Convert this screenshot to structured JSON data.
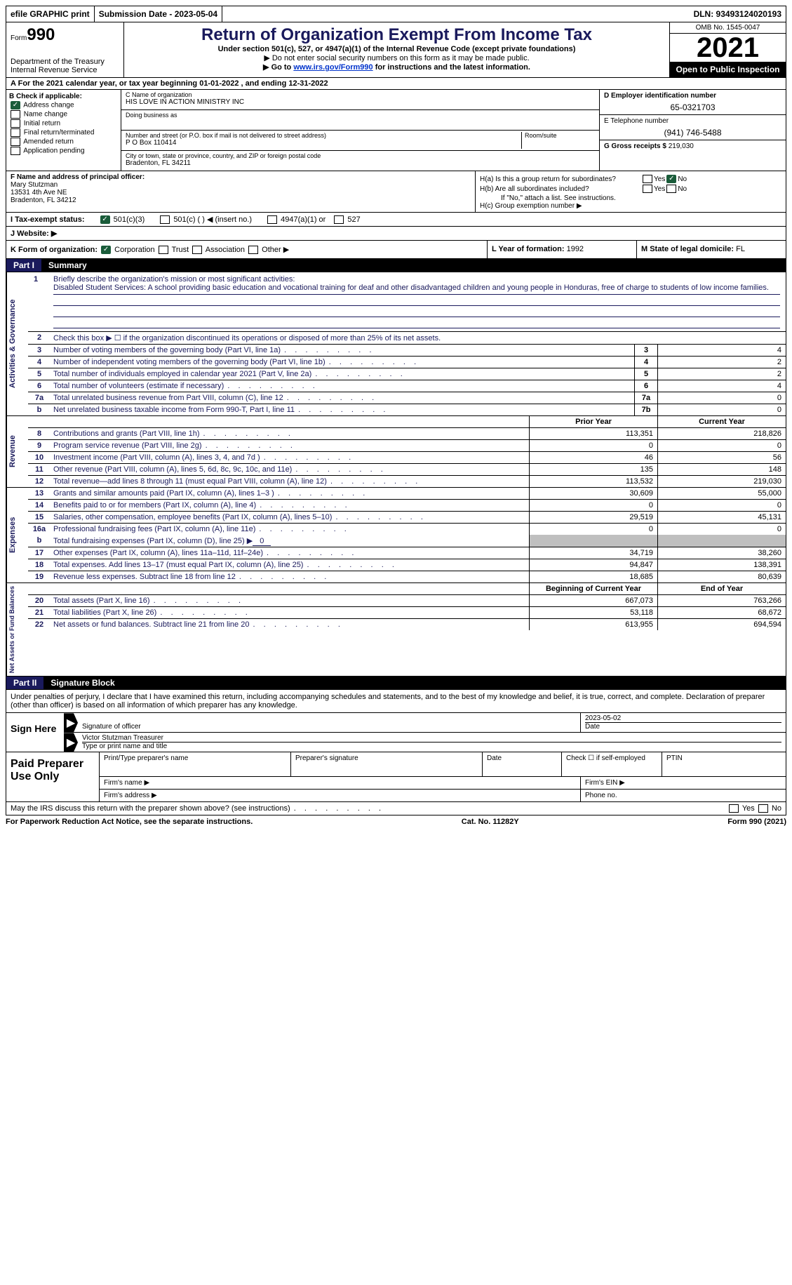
{
  "topbar": {
    "efile": "efile GRAPHIC print",
    "submission_label": "Submission Date - 2023-05-04",
    "dln": "DLN: 93493124020193"
  },
  "header": {
    "form_word": "Form",
    "form_number": "990",
    "dept": "Department of the Treasury",
    "irs": "Internal Revenue Service",
    "title": "Return of Organization Exempt From Income Tax",
    "sub": "Under section 501(c), 527, or 4947(a)(1) of the Internal Revenue Code (except private foundations)",
    "sub2": "▶ Do not enter social security numbers on this form as it may be made public.",
    "sub3_prefix": "▶ Go to ",
    "sub3_link": "www.irs.gov/Form990",
    "sub3_suffix": " for instructions and the latest information.",
    "omb": "OMB No. 1545-0047",
    "year": "2021",
    "inspection": "Open to Public Inspection"
  },
  "line_a": "For the 2021 calendar year, or tax year beginning 01-01-2022   , and ending 12-31-2022",
  "section_b": {
    "label": "B Check if applicable:",
    "address": "Address change",
    "name": "Name change",
    "initial": "Initial return",
    "final": "Final return/terminated",
    "amended": "Amended return",
    "app": "Application pending"
  },
  "section_c": {
    "name_label": "C Name of organization",
    "name": "HIS LOVE IN ACTION MINISTRY INC",
    "dba_label": "Doing business as",
    "addr_label": "Number and street (or P.O. box if mail is not delivered to street address)",
    "room_label": "Room/suite",
    "addr": "P O Box 110414",
    "city_label": "City or town, state or province, country, and ZIP or foreign postal code",
    "city": "Bradenton, FL  34211"
  },
  "section_de": {
    "ein_label": "D Employer identification number",
    "ein": "65-0321703",
    "phone_label": "E Telephone number",
    "phone": "(941) 746-5488",
    "gross_label": "G Gross receipts $",
    "gross": "219,030"
  },
  "section_f": {
    "label": "F  Name and address of principal officer:",
    "name": "Mary Stutzman",
    "addr": "13531 4th Ave NE",
    "city": "Bradenton, FL  34212"
  },
  "section_h": {
    "ha_label": "H(a)  Is this a group return for subordinates?",
    "hb_label": "H(b)  Are all subordinates included?",
    "hb_note": "If \"No,\" attach a list. See instructions.",
    "hc_label": "H(c)  Group exemption number ▶",
    "yes": "Yes",
    "no": "No"
  },
  "section_i": {
    "label": "I   Tax-exempt status:",
    "c3": "501(c)(3)",
    "c_other": "501(c) (  ) ◀ (insert no.)",
    "a1": "4947(a)(1) or",
    "s527": "527"
  },
  "section_j": {
    "label": "J   Website: ▶"
  },
  "section_k": {
    "label": "K Form of organization:",
    "corp": "Corporation",
    "trust": "Trust",
    "assoc": "Association",
    "other": "Other ▶"
  },
  "section_l": {
    "label": "L Year of formation:",
    "value": "1992"
  },
  "section_m": {
    "label": "M State of legal domicile:",
    "value": "FL"
  },
  "part1": {
    "num": "Part I",
    "title": "Summary"
  },
  "mission": {
    "ln": "1",
    "label": "Briefly describe the organization's mission or most significant activities:",
    "text": "Disabled Student Services: A school providing basic education and vocational training for deaf and other disadvantaged children and young people in Honduras, free of charge to students of low income families."
  },
  "line2": {
    "ln": "2",
    "text": "Check this box ▶ ☐ if the organization discontinued its operations or disposed of more than 25% of its net assets."
  },
  "tabs": {
    "ag": "Activities & Governance",
    "rev": "Revenue",
    "exp": "Expenses",
    "net": "Net Assets or Fund Balances"
  },
  "rows_ag": [
    {
      "ln": "3",
      "desc": "Number of voting members of the governing body (Part VI, line 1a)",
      "box": "3",
      "val": "4"
    },
    {
      "ln": "4",
      "desc": "Number of independent voting members of the governing body (Part VI, line 1b)",
      "box": "4",
      "val": "2"
    },
    {
      "ln": "5",
      "desc": "Total number of individuals employed in calendar year 2021 (Part V, line 2a)",
      "box": "5",
      "val": "2"
    },
    {
      "ln": "6",
      "desc": "Total number of volunteers (estimate if necessary)",
      "box": "6",
      "val": "4"
    },
    {
      "ln": "7a",
      "desc": "Total unrelated business revenue from Part VIII, column (C), line 12",
      "box": "7a",
      "val": "0"
    },
    {
      "ln": "b",
      "desc": "Net unrelated business taxable income from Form 990-T, Part I, line 11",
      "box": "7b",
      "val": "0"
    }
  ],
  "hdr_prior": "Prior Year",
  "hdr_current": "Current Year",
  "rows_rev": [
    {
      "ln": "8",
      "desc": "Contributions and grants (Part VIII, line 1h)",
      "v1": "113,351",
      "v2": "218,826"
    },
    {
      "ln": "9",
      "desc": "Program service revenue (Part VIII, line 2g)",
      "v1": "0",
      "v2": "0"
    },
    {
      "ln": "10",
      "desc": "Investment income (Part VIII, column (A), lines 3, 4, and 7d )",
      "v1": "46",
      "v2": "56"
    },
    {
      "ln": "11",
      "desc": "Other revenue (Part VIII, column (A), lines 5, 6d, 8c, 9c, 10c, and 11e)",
      "v1": "135",
      "v2": "148"
    },
    {
      "ln": "12",
      "desc": "Total revenue—add lines 8 through 11 (must equal Part VIII, column (A), line 12)",
      "v1": "113,532",
      "v2": "219,030"
    }
  ],
  "rows_exp": [
    {
      "ln": "13",
      "desc": "Grants and similar amounts paid (Part IX, column (A), lines 1–3 )",
      "v1": "30,609",
      "v2": "55,000"
    },
    {
      "ln": "14",
      "desc": "Benefits paid to or for members (Part IX, column (A), line 4)",
      "v1": "0",
      "v2": "0"
    },
    {
      "ln": "15",
      "desc": "Salaries, other compensation, employee benefits (Part IX, column (A), lines 5–10)",
      "v1": "29,519",
      "v2": "45,131"
    },
    {
      "ln": "16a",
      "desc": "Professional fundraising fees (Part IX, column (A), line 11e)",
      "v1": "0",
      "v2": "0"
    }
  ],
  "line16b": {
    "ln": "b",
    "desc_prefix": "Total fundraising expenses (Part IX, column (D), line 25) ▶",
    "value": "0"
  },
  "rows_exp2": [
    {
      "ln": "17",
      "desc": "Other expenses (Part IX, column (A), lines 11a–11d, 11f–24e)",
      "v1": "34,719",
      "v2": "38,260"
    },
    {
      "ln": "18",
      "desc": "Total expenses. Add lines 13–17 (must equal Part IX, column (A), line 25)",
      "v1": "94,847",
      "v2": "138,391"
    },
    {
      "ln": "19",
      "desc": "Revenue less expenses. Subtract line 18 from line 12",
      "v1": "18,685",
      "v2": "80,639"
    }
  ],
  "hdr_beg": "Beginning of Current Year",
  "hdr_end": "End of Year",
  "rows_net": [
    {
      "ln": "20",
      "desc": "Total assets (Part X, line 16)",
      "v1": "667,073",
      "v2": "763,266"
    },
    {
      "ln": "21",
      "desc": "Total liabilities (Part X, line 26)",
      "v1": "53,118",
      "v2": "68,672"
    },
    {
      "ln": "22",
      "desc": "Net assets or fund balances. Subtract line 21 from line 20",
      "v1": "613,955",
      "v2": "694,594"
    }
  ],
  "part2": {
    "num": "Part II",
    "title": "Signature Block"
  },
  "sig_text": "Under penalties of perjury, I declare that I have examined this return, including accompanying schedules and statements, and to the best of my knowledge and belief, it is true, correct, and complete. Declaration of preparer (other than officer) is based on all information of which preparer has any knowledge.",
  "sign_here": "Sign Here",
  "sig_officer_label": "Signature of officer",
  "sig_date_label": "Date",
  "sig_date": "2023-05-02",
  "sig_name": "Victor Stutzman  Treasurer",
  "sig_name_label": "Type or print name and title",
  "prep": {
    "title": "Paid Preparer Use Only",
    "name_label": "Print/Type preparer's name",
    "sig_label": "Preparer's signature",
    "date_label": "Date",
    "check_label": "Check ☐ if self-employed",
    "ptin_label": "PTIN",
    "firm_name": "Firm's name    ▶",
    "firm_ein": "Firm's EIN ▶",
    "firm_addr": "Firm's address ▶",
    "phone": "Phone no."
  },
  "discuss": "May the IRS discuss this return with the preparer shown above? (see instructions)",
  "footer": {
    "pra": "For Paperwork Reduction Act Notice, see the separate instructions.",
    "cat": "Cat. No. 11282Y",
    "form": "Form 990 (2021)"
  }
}
